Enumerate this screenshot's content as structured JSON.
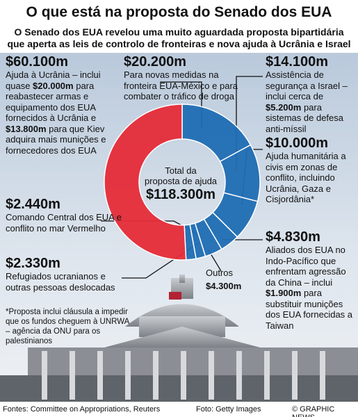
{
  "chart_data": {
    "type": "donut",
    "title": "O que está na proposta do Senado dos EUA",
    "subtitle": [
      "O Senado dos EUA revelou uma muito aguardada proposta bipartidária",
      "que aperta as leis de controlo de fronteiras e nova ajuda à Ucrânia e Israel"
    ],
    "center_label": [
      "Total da",
      "proposta de ajuda"
    ],
    "total_label": "$118.300m",
    "values": [
      20200,
      14100,
      10000,
      4830,
      4300,
      2330,
      2440,
      60100
    ],
    "value_labels": [
      "$20.200m",
      "$14.100m",
      "$10.000m",
      "$4.830m",
      "$4.300m",
      "$2.330m",
      "$2.440m",
      "$60.100m"
    ],
    "descriptions": [
      [
        "Para novas medidas na fronteira EUA-México e para combater o tráfico de droga"
      ],
      [
        "Assistência de segurança a Israel – inclui cerca de ",
        "$5.200m",
        " para sistemas de defesa anti-míssil"
      ],
      [
        "Ajuda humanitária a civis em zonas de conflito, incluindo Ucrânia, Gaza e Cisjordânia*"
      ],
      [
        "Aliados dos EUA no Indo-Pacífico que enfrentam agressão da China – inclui ",
        "$1.900m",
        " para substituir munições dos EUA fornecidas a Taiwan"
      ],
      [
        "Outros"
      ],
      [
        "Refugiados ucranianos e outras pessoas deslocadas"
      ],
      [
        "Comando Central dos EUA e conflito no mar Vermelho"
      ],
      [
        "Ajuda à Ucrânia – inclui quase ",
        "$20.000m",
        " para reabastecer armas e equipamento dos EUA fornecidos à Ucrânia e ",
        "$13.800m",
        " para que Kiev adquira mais munições e fornecedores dos EUA"
      ]
    ],
    "colors": [
      "#1f6db3",
      "#1f6db3",
      "#1f6db3",
      "#1f6db3",
      "#1f6db3",
      "#1f6db3",
      "#1f6db3",
      "#e52b38"
    ],
    "footnote": "*Proposta inclui cláusula a impedir que os fundos cheguem à UNRWA – agência da ONU para os palestinianos",
    "sources": "Fontes: Committee on Appropriations, Reuters",
    "photo_credit": "Foto: Getty Images",
    "credit": "© GRAPHIC NEWS"
  }
}
